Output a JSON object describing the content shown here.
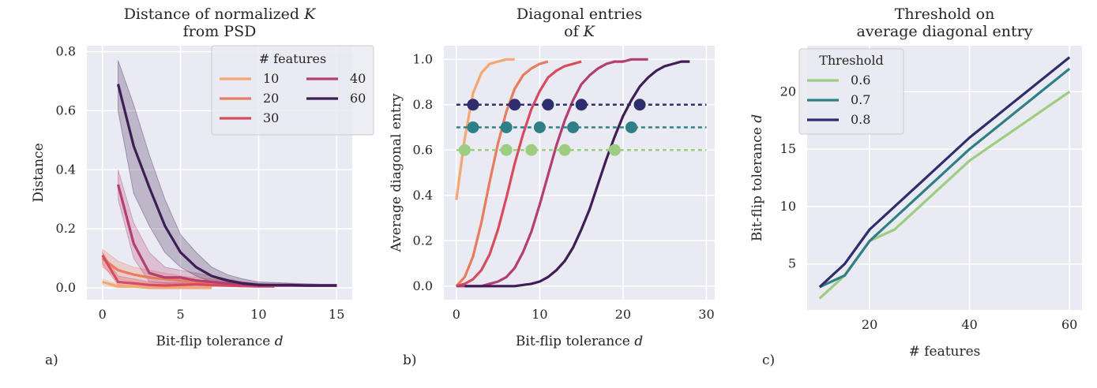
{
  "chart_data": [
    {
      "type": "line",
      "panel_label": "a)",
      "title_lines": [
        "Distance of normalized ",
        "from PSD"
      ],
      "title_symbol": "K",
      "xlabel": "Bit-flip tolerance ",
      "xlabel_symbol": "d",
      "ylabel": "Distance",
      "xlim": [
        -1,
        16
      ],
      "ylim": [
        -0.04,
        0.82
      ],
      "xticks": [
        0,
        5,
        10,
        15
      ],
      "yticks": [
        0.0,
        0.2,
        0.4,
        0.6,
        0.8
      ],
      "ytick_labels": [
        "0.0",
        "0.2",
        "0.4",
        "0.6",
        "0.8"
      ],
      "legend": {
        "title": "# features",
        "placement": "top-right",
        "columns": 2
      },
      "series": [
        {
          "name": "10",
          "color": "#f3a772",
          "x": [
            0,
            1,
            2,
            3,
            4,
            5,
            6,
            7
          ],
          "y": [
            0.02,
            0.005,
            0.005,
            0.0,
            0.0,
            0.0,
            0.0,
            0.0
          ],
          "band_low": [
            0.01,
            0.0,
            0.0,
            0.0,
            0.0,
            0.0,
            0.0,
            0.0
          ],
          "band_high": [
            0.03,
            0.012,
            0.008,
            0.004,
            0.003,
            0.003,
            0.003,
            0.003
          ]
        },
        {
          "name": "20",
          "color": "#e77c5e",
          "x": [
            0,
            1,
            2,
            3,
            4,
            5,
            6,
            7,
            8,
            9,
            10,
            11
          ],
          "y": [
            0.1,
            0.06,
            0.045,
            0.035,
            0.03,
            0.025,
            0.02,
            0.015,
            0.012,
            0.01,
            0.008,
            0.005
          ],
          "band_low": [
            0.07,
            0.03,
            0.02,
            0.015,
            0.012,
            0.01,
            0.008,
            0.006,
            0.005,
            0.004,
            0.003,
            0.002
          ],
          "band_high": [
            0.13,
            0.09,
            0.07,
            0.06,
            0.05,
            0.04,
            0.035,
            0.03,
            0.025,
            0.02,
            0.015,
            0.01
          ]
        },
        {
          "name": "30",
          "color": "#d84b5f",
          "x": [
            0,
            1,
            2,
            3,
            4,
            5,
            6,
            7,
            8,
            9,
            10,
            11
          ],
          "y": [
            0.11,
            0.02,
            0.015,
            0.01,
            0.008,
            0.01,
            0.012,
            0.01,
            0.008,
            0.006,
            0.005,
            0.005
          ],
          "band_low": [
            0.08,
            0.01,
            0.005,
            0.003,
            0.003,
            0.005,
            0.006,
            0.005,
            0.004,
            0.003,
            0.002,
            0.002
          ],
          "band_high": [
            0.12,
            0.04,
            0.03,
            0.02,
            0.018,
            0.018,
            0.018,
            0.016,
            0.014,
            0.012,
            0.01,
            0.01
          ]
        },
        {
          "name": "40",
          "color": "#b33e6f",
          "x": [
            1,
            2,
            3,
            4,
            5,
            6,
            7,
            8,
            9,
            10,
            11,
            12,
            13,
            14,
            15
          ],
          "y": [
            0.35,
            0.15,
            0.05,
            0.035,
            0.035,
            0.025,
            0.02,
            0.015,
            0.01,
            0.008,
            0.008,
            0.008,
            0.008,
            0.008,
            0.008
          ],
          "band_low": [
            0.3,
            0.1,
            0.02,
            0.015,
            0.015,
            0.01,
            0.008,
            0.006,
            0.005,
            0.004,
            0.004,
            0.004,
            0.004,
            0.004,
            0.004
          ],
          "band_high": [
            0.4,
            0.22,
            0.12,
            0.07,
            0.06,
            0.05,
            0.04,
            0.03,
            0.02,
            0.015,
            0.012,
            0.012,
            0.012,
            0.012,
            0.012
          ]
        },
        {
          "name": "60",
          "color": "#3d1e55",
          "x": [
            1,
            2,
            3,
            4,
            5,
            6,
            7,
            8,
            9,
            10,
            11,
            12,
            13,
            14,
            15
          ],
          "y": [
            0.69,
            0.48,
            0.34,
            0.21,
            0.12,
            0.07,
            0.04,
            0.025,
            0.015,
            0.01,
            0.01,
            0.01,
            0.008,
            0.008,
            0.008
          ],
          "band_low": [
            0.6,
            0.32,
            0.21,
            0.12,
            0.07,
            0.04,
            0.02,
            0.012,
            0.008,
            0.005,
            0.005,
            0.005,
            0.004,
            0.004,
            0.004
          ],
          "band_high": [
            0.77,
            0.62,
            0.45,
            0.3,
            0.18,
            0.12,
            0.07,
            0.045,
            0.03,
            0.02,
            0.018,
            0.016,
            0.014,
            0.012,
            0.012
          ]
        }
      ]
    },
    {
      "type": "line",
      "panel_label": "b)",
      "title_lines": [
        "Diagonal entries",
        "of "
      ],
      "title_symbol": "K",
      "xlabel": "Bit-flip tolerance ",
      "xlabel_symbol": "d",
      "ylabel": "Average diagonal entry",
      "xlim": [
        -1.5,
        31
      ],
      "ylim": [
        -0.06,
        1.06
      ],
      "xticks": [
        0,
        10,
        20,
        30
      ],
      "yticks": [
        0.0,
        0.2,
        0.4,
        0.6,
        0.8,
        1.0
      ],
      "ytick_labels": [
        "0.0",
        "0.2",
        "0.4",
        "0.6",
        "0.8",
        "1.0"
      ],
      "curves": [
        {
          "name": "10",
          "color": "#f3a772",
          "x": [
            0,
            1,
            2,
            3,
            4,
            5,
            6,
            7
          ],
          "y": [
            0.38,
            0.65,
            0.85,
            0.94,
            0.98,
            0.99,
            1.0,
            1.0
          ]
        },
        {
          "name": "20",
          "color": "#e77c5e",
          "x": [
            0,
            1,
            2,
            3,
            4,
            5,
            6,
            7,
            8,
            9,
            10,
            11
          ],
          "y": [
            0.0,
            0.04,
            0.13,
            0.28,
            0.46,
            0.63,
            0.77,
            0.87,
            0.93,
            0.96,
            0.98,
            0.99
          ]
        },
        {
          "name": "30",
          "color": "#d84b5f",
          "x": [
            0,
            1,
            2,
            3,
            4,
            5,
            6,
            7,
            8,
            9,
            10,
            11,
            12,
            13,
            14,
            15
          ],
          "y": [
            0.0,
            0.01,
            0.03,
            0.07,
            0.14,
            0.25,
            0.39,
            0.54,
            0.67,
            0.78,
            0.86,
            0.92,
            0.95,
            0.97,
            0.98,
            0.99
          ]
        },
        {
          "name": "40",
          "color": "#b33e6f",
          "x": [
            0,
            1,
            2,
            3,
            4,
            5,
            6,
            7,
            8,
            9,
            10,
            11,
            12,
            13,
            14,
            15,
            16,
            17,
            18,
            19,
            20,
            21,
            22,
            23
          ],
          "y": [
            0.0,
            0.0,
            0.0,
            0.0,
            0.01,
            0.02,
            0.04,
            0.08,
            0.15,
            0.24,
            0.36,
            0.49,
            0.62,
            0.73,
            0.82,
            0.89,
            0.93,
            0.96,
            0.98,
            0.99,
            0.99,
            1.0,
            1.0,
            1.0
          ]
        },
        {
          "name": "60",
          "color": "#3d1e55",
          "x": [
            1,
            2,
            3,
            4,
            5,
            6,
            7,
            8,
            9,
            10,
            11,
            12,
            13,
            14,
            15,
            16,
            17,
            18,
            19,
            20,
            21,
            22,
            23,
            24,
            25,
            26,
            27,
            28
          ],
          "y": [
            0.0,
            0.0,
            0.0,
            0.0,
            0.0,
            0.0,
            0.0,
            0.005,
            0.01,
            0.02,
            0.04,
            0.07,
            0.11,
            0.17,
            0.25,
            0.34,
            0.45,
            0.56,
            0.66,
            0.75,
            0.82,
            0.88,
            0.92,
            0.95,
            0.97,
            0.98,
            0.99,
            0.99
          ]
        }
      ],
      "thresholds": [
        {
          "level": 0.8,
          "color": "#2e2e6e",
          "x": [
            2,
            7,
            11,
            15,
            22
          ]
        },
        {
          "level": 0.7,
          "color": "#2f7f86",
          "x": [
            2,
            6,
            10,
            14,
            21
          ]
        },
        {
          "level": 0.6,
          "color": "#9ccd80",
          "x": [
            1,
            6,
            9,
            13,
            19
          ]
        }
      ]
    },
    {
      "type": "line",
      "panel_label": "c)",
      "title_lines": [
        "Threshold on",
        "average diagonal entry"
      ],
      "xlabel": "# features",
      "ylabel": "Bit-flip tolerance ",
      "ylabel_symbol": "d",
      "xlim": [
        7.5,
        62.5
      ],
      "ylim": [
        1.0,
        24.0
      ],
      "xticks": [
        20,
        40,
        60
      ],
      "yticks": [
        5,
        10,
        15,
        20
      ],
      "legend": {
        "title": "Threshold",
        "placement": "top-left",
        "columns": 1
      },
      "series": [
        {
          "name": "0.6",
          "color": "#9ccd80",
          "x": [
            10,
            15,
            20,
            25,
            30,
            40,
            60
          ],
          "y": [
            2,
            4,
            7,
            8,
            10,
            14,
            20
          ]
        },
        {
          "name": "0.7",
          "color": "#2f7f86",
          "x": [
            10,
            15,
            20,
            25,
            30,
            40,
            60
          ],
          "y": [
            3,
            4,
            7,
            9,
            11,
            15,
            22
          ]
        },
        {
          "name": "0.8",
          "color": "#2e2e6e",
          "x": [
            10,
            15,
            20,
            25,
            30,
            40,
            60
          ],
          "y": [
            3,
            5,
            8,
            10,
            12,
            16,
            23
          ]
        }
      ]
    }
  ]
}
